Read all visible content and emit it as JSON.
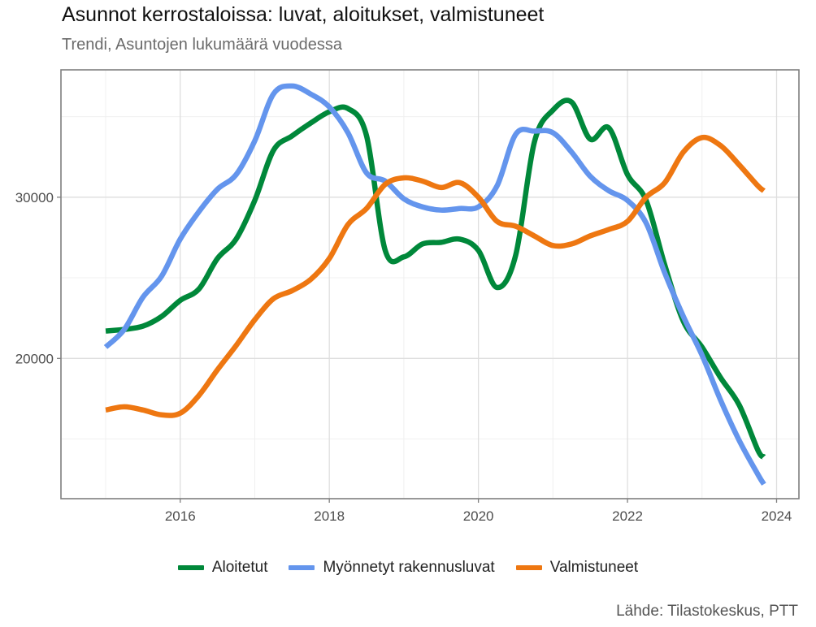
{
  "chart_data": {
    "type": "line",
    "title": "Asunnot kerrostaloissa: luvat, aloitukset, valmistuneet",
    "subtitle": "Trendi, Asuntojen lukumäärä vuodessa",
    "caption": "Lähde: Tilastokeskus, PTT",
    "xlabel": "",
    "ylabel": "",
    "xlim": [
      2014.4,
      2024.3
    ],
    "ylim": [
      11300,
      37900
    ],
    "x_ticks": [
      2016,
      2018,
      2020,
      2022,
      2024
    ],
    "y_ticks": [
      20000,
      30000
    ],
    "grid": true,
    "legend_position": "bottom",
    "series": [
      {
        "name": "Aloitetut",
        "color": "#00883A",
        "x": [
          2015.0,
          2015.25,
          2015.5,
          2015.75,
          2016.0,
          2016.25,
          2016.5,
          2016.75,
          2017.0,
          2017.25,
          2017.5,
          2017.75,
          2018.0,
          2018.25,
          2018.5,
          2018.75,
          2019.0,
          2019.25,
          2019.5,
          2019.75,
          2020.0,
          2020.25,
          2020.5,
          2020.75,
          2021.0,
          2021.25,
          2021.5,
          2021.75,
          2022.0,
          2022.25,
          2022.5,
          2022.75,
          2023.0,
          2023.25,
          2023.5,
          2023.75,
          2023.83
        ],
        "y": [
          21700,
          21800,
          22000,
          22600,
          23600,
          24300,
          26200,
          27400,
          29800,
          32900,
          33800,
          34600,
          35300,
          35500,
          33800,
          26700,
          26300,
          27100,
          27200,
          27400,
          26700,
          24400,
          26400,
          33400,
          35400,
          35900,
          33600,
          34300,
          31400,
          29800,
          25800,
          22300,
          20700,
          18800,
          17100,
          14300,
          13900
        ]
      },
      {
        "name": "Myönnetyt rakennusluvat",
        "color": "#6495ED",
        "x": [
          2015.0,
          2015.25,
          2015.5,
          2015.75,
          2016.0,
          2016.25,
          2016.5,
          2016.75,
          2017.0,
          2017.25,
          2017.5,
          2017.75,
          2018.0,
          2018.25,
          2018.5,
          2018.75,
          2019.0,
          2019.25,
          2019.5,
          2019.75,
          2020.0,
          2020.25,
          2020.5,
          2020.75,
          2021.0,
          2021.25,
          2021.5,
          2021.75,
          2022.0,
          2022.25,
          2022.5,
          2022.75,
          2023.0,
          2023.25,
          2023.5,
          2023.75,
          2023.83
        ],
        "y": [
          20700,
          21800,
          23800,
          25100,
          27400,
          29100,
          30500,
          31400,
          33500,
          36400,
          36900,
          36400,
          35600,
          34000,
          31500,
          31000,
          29900,
          29400,
          29200,
          29300,
          29400,
          30700,
          33900,
          34100,
          34000,
          32800,
          31300,
          30400,
          29800,
          28400,
          25300,
          22600,
          20200,
          17400,
          14900,
          12800,
          12200
        ]
      },
      {
        "name": "Valmistuneet",
        "color": "#EE7711",
        "x": [
          2015.0,
          2015.25,
          2015.5,
          2015.75,
          2016.0,
          2016.25,
          2016.5,
          2016.75,
          2017.0,
          2017.25,
          2017.5,
          2017.75,
          2018.0,
          2018.25,
          2018.5,
          2018.75,
          2019.0,
          2019.25,
          2019.5,
          2019.75,
          2020.0,
          2020.25,
          2020.5,
          2020.75,
          2021.0,
          2021.25,
          2021.5,
          2021.75,
          2022.0,
          2022.25,
          2022.5,
          2022.75,
          2023.0,
          2023.25,
          2023.5,
          2023.75,
          2023.83
        ],
        "y": [
          16800,
          17000,
          16800,
          16500,
          16600,
          17700,
          19300,
          20800,
          22400,
          23700,
          24200,
          24900,
          26200,
          28300,
          29300,
          30800,
          31200,
          31000,
          30600,
          30900,
          30000,
          28500,
          28200,
          27600,
          27000,
          27100,
          27600,
          28000,
          28500,
          30000,
          30900,
          32800,
          33700,
          33200,
          32000,
          30700,
          30400
        ]
      }
    ]
  }
}
